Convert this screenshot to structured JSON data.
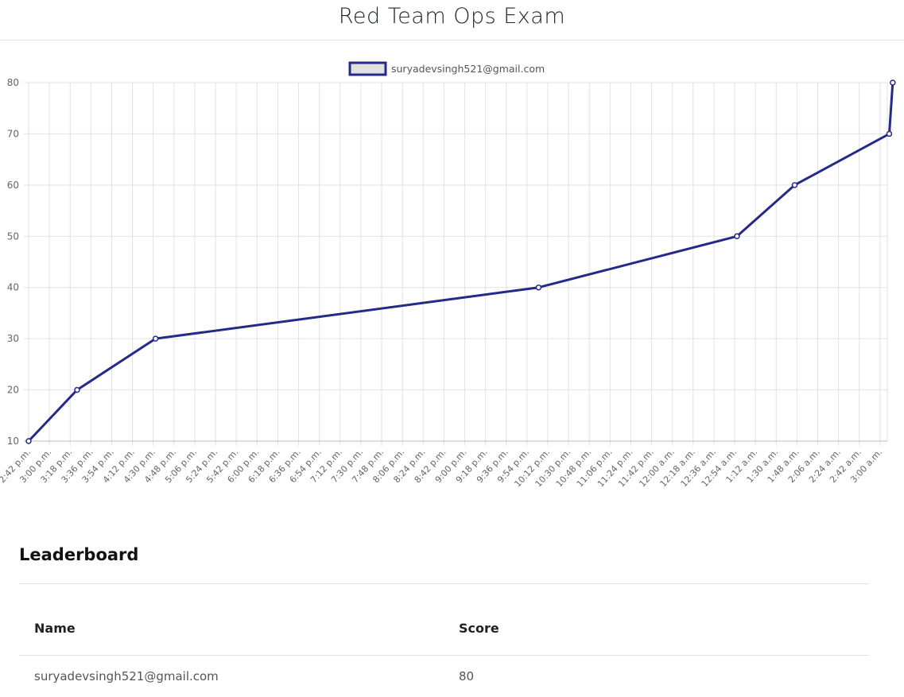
{
  "page": {
    "title": "Red Team Ops Exam"
  },
  "leaderboard": {
    "title": "Leaderboard",
    "columns": {
      "name": "Name",
      "score": "Score"
    },
    "rows": [
      {
        "name": "suryadevsingh521@gmail.com",
        "score": "80"
      }
    ]
  },
  "chart_data": {
    "type": "line",
    "legend_position": "top-center",
    "grid": true,
    "series_color": "#252a8a",
    "legend_fill": "#e0e0e0",
    "categories": [
      "2:42 p.m.",
      "3:00 p.m.",
      "3:18 p.m.",
      "3:36 p.m.",
      "3:54 p.m.",
      "4:12 p.m.",
      "4:30 p.m.",
      "4:48 p.m.",
      "5:06 p.m.",
      "5:24 p.m.",
      "5:42 p.m.",
      "6:00 p.m.",
      "6:18 p.m.",
      "6:36 p.m.",
      "6:54 p.m.",
      "7:12 p.m.",
      "7:30 p.m.",
      "7:48 p.m.",
      "8:06 p.m.",
      "8:24 p.m.",
      "8:42 p.m.",
      "9:00 p.m.",
      "9:18 p.m.",
      "9:36 p.m.",
      "9:54 p.m.",
      "10:12 p.m.",
      "10:30 p.m.",
      "10:48 p.m.",
      "11:06 p.m.",
      "11:24 p.m.",
      "11:42 p.m.",
      "12:00 a.m.",
      "12:18 a.m.",
      "12:36 a.m.",
      "12:54 a.m.",
      "1:12 a.m.",
      "1:30 a.m.",
      "1:48 a.m.",
      "2:06 a.m.",
      "2:24 a.m.",
      "2:42 a.m.",
      "3:00 a.m."
    ],
    "series": [
      {
        "name": "suryadevsingh521@gmail.com",
        "points": [
          {
            "x": "2:42 p.m.",
            "y": 10
          },
          {
            "x": "3:24 p.m.",
            "y": 20
          },
          {
            "x": "4:32 p.m.",
            "y": 30
          },
          {
            "x": "10:04 p.m.",
            "y": 40
          },
          {
            "x": "12:56 a.m.",
            "y": 50
          },
          {
            "x": "1:46 a.m.",
            "y": 60
          },
          {
            "x": "3:08 a.m.",
            "y": 70
          },
          {
            "x": "3:11 a.m.",
            "y": 80
          }
        ]
      }
    ],
    "ylim": [
      10,
      80
    ],
    "yticks": [
      10,
      20,
      30,
      40,
      50,
      60,
      70,
      80
    ]
  }
}
